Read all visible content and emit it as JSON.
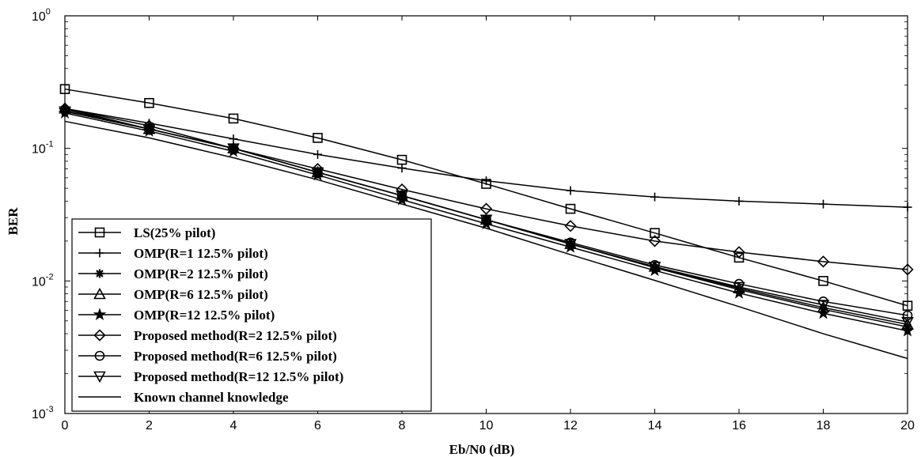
{
  "chart_data": {
    "type": "line",
    "title": "",
    "xlabel": "Eb/N0 (dB)",
    "ylabel": "BER",
    "x": [
      0,
      2,
      4,
      6,
      8,
      10,
      12,
      14,
      16,
      18,
      20
    ],
    "xlim": [
      0,
      20
    ],
    "ylim": [
      0.001,
      1
    ],
    "yscale": "log",
    "x_ticks": [
      "0",
      "2",
      "4",
      "6",
      "8",
      "10",
      "12",
      "14",
      "16",
      "18",
      "20"
    ],
    "y_ticks": [
      {
        "base": "10",
        "exp": "-3",
        "value": 0.001
      },
      {
        "base": "10",
        "exp": "-2",
        "value": 0.01
      },
      {
        "base": "10",
        "exp": "-1",
        "value": 0.1
      },
      {
        "base": "10",
        "exp": "0",
        "value": 1
      }
    ],
    "grid": false,
    "legend_position": "bottom-left",
    "line_color": "#000000",
    "series": [
      {
        "name": "LS(25% pilot)",
        "marker": "square",
        "values": [
          0.28,
          0.22,
          0.168,
          0.12,
          0.082,
          0.054,
          0.035,
          0.023,
          0.015,
          0.01,
          0.0065
        ]
      },
      {
        "name": "OMP(R=1 12.5% pilot)",
        "marker": "plus",
        "values": [
          0.2,
          0.155,
          0.118,
          0.09,
          0.071,
          0.057,
          0.048,
          0.043,
          0.04,
          0.038,
          0.036
        ]
      },
      {
        "name": "OMP(R=2 12.5% pilot)",
        "marker": "asterisk",
        "values": [
          0.19,
          0.14,
          0.1,
          0.066,
          0.044,
          0.029,
          0.019,
          0.0126,
          0.0086,
          0.0061,
          0.0045
        ]
      },
      {
        "name": "OMP(R=6 12.5% pilot)",
        "marker": "triangle-up",
        "values": [
          0.2,
          0.14,
          0.1,
          0.066,
          0.044,
          0.029,
          0.019,
          0.0128,
          0.0088,
          0.0063,
          0.0047
        ]
      },
      {
        "name": "OMP(R=12 12.5% pilot)",
        "marker": "star",
        "values": [
          0.185,
          0.135,
          0.095,
          0.063,
          0.041,
          0.027,
          0.018,
          0.012,
          0.0081,
          0.0057,
          0.0042
        ]
      },
      {
        "name": "Proposed method(R=2 12.5% pilot)",
        "marker": "diamond",
        "values": [
          0.2,
          0.148,
          0.1,
          0.07,
          0.049,
          0.035,
          0.026,
          0.02,
          0.0165,
          0.014,
          0.0122
        ]
      },
      {
        "name": "Proposed method(R=6 12.5% pilot)",
        "marker": "circle",
        "values": [
          0.195,
          0.14,
          0.1,
          0.066,
          0.044,
          0.029,
          0.0195,
          0.0132,
          0.0095,
          0.007,
          0.0055
        ]
      },
      {
        "name": "Proposed method(R=12 12.5% pilot)",
        "marker": "triangle-down",
        "values": [
          0.19,
          0.14,
          0.1,
          0.066,
          0.044,
          0.029,
          0.019,
          0.0128,
          0.009,
          0.0066,
          0.0049
        ]
      },
      {
        "name": "Known channel knowledge",
        "marker": "none",
        "values": [
          0.16,
          0.12,
          0.085,
          0.058,
          0.038,
          0.025,
          0.0158,
          0.0101,
          0.0064,
          0.004,
          0.0026
        ]
      }
    ]
  }
}
